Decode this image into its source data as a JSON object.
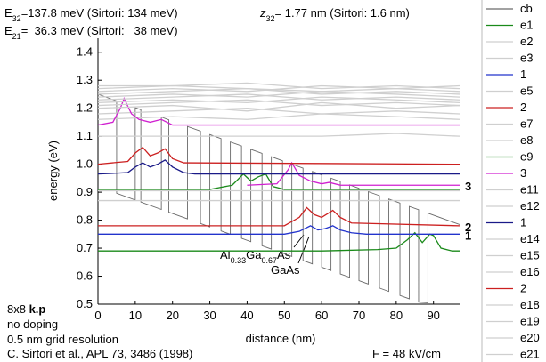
{
  "chart_data": {
    "type": "line",
    "xlabel": "distance (nm)",
    "ylabel": "energy (eV)",
    "xlim": [
      0,
      97
    ],
    "ylim": [
      0.5,
      1.45
    ],
    "xticks": [
      0,
      10,
      20,
      30,
      40,
      50,
      60,
      70,
      80,
      90
    ],
    "yticks": [
      0.5,
      0.6,
      0.7,
      0.8,
      0.9,
      {
        "value": 1,
        "label": "1.0"
      },
      1.1,
      1.2,
      1.3,
      1.4
    ],
    "annotations": [
      {
        "parts": [
          {
            "text": "E"
          },
          {
            "text": "32",
            "sub": true
          },
          {
            "text": "=137.8 meV (Sirtori: 134 meV)"
          }
        ]
      },
      {
        "parts": [
          {
            "text": "z"
          },
          {
            "text": "32",
            "sub": true
          },
          {
            "text": "= 1.77 nm (Sirtori: 1.6 nm)"
          }
        ]
      },
      {
        "parts": [
          {
            "text": "E"
          },
          {
            "text": "21",
            "sub": true
          },
          {
            "text": "=  36.3 meV (Sirtori:   38 meV)"
          }
        ]
      },
      {
        "parts": [
          {
            "text": "Al"
          },
          {
            "text": "0.33",
            "sub": true
          },
          {
            "text": "Ga"
          },
          {
            "text": "0.67",
            "sub": true
          },
          {
            "text": "As"
          }
        ]
      },
      {
        "parts": [
          {
            "text": "GaAs"
          }
        ]
      },
      {
        "parts": [
          {
            "text": "8x8 "
          },
          {
            "text": "k.p",
            "bold": true
          }
        ]
      },
      {
        "parts": [
          {
            "text": "no doping"
          }
        ]
      },
      {
        "parts": [
          {
            "text": "0.5 nm grid resolution"
          }
        ]
      },
      {
        "parts": [
          {
            "text": "C. Sirtori et al., APL 73, 3486 (1998)"
          }
        ]
      },
      {
        "parts": [
          {
            "text": "F = 48 kV/cm"
          }
        ]
      }
    ],
    "series": [
      {
        "name": "cb",
        "color": "#6a6a6a",
        "x": [
          0,
          5,
          5,
          10,
          10,
          11.5,
          11.5,
          17,
          17,
          19,
          19,
          24,
          24,
          27.5,
          27.5,
          30,
          30,
          33,
          33,
          35.5,
          35.5,
          38.5,
          38.5,
          41,
          41,
          44,
          44,
          46.5,
          46.5,
          49.5,
          49.5,
          52,
          52,
          55,
          55,
          57.5,
          57.5,
          60,
          60,
          62.5,
          62.5,
          65,
          65,
          67.5,
          67.5,
          70,
          70,
          72.5,
          72.5,
          75.5,
          75.5,
          78,
          78,
          81,
          81,
          83.5,
          83.5,
          86,
          86,
          88.5,
          88.5,
          97
        ],
        "values": [
          1.25,
          1.226,
          0.896,
          0.872,
          1.202,
          1.1948,
          0.8648,
          0.8384,
          1.1684,
          1.1588,
          0.8288,
          0.8048,
          1.1348,
          1.118,
          0.788,
          0.776,
          1.106,
          1.0916,
          0.7616,
          0.7496,
          1.0796,
          1.0652,
          0.7352,
          0.7232,
          1.0532,
          1.0388,
          0.7088,
          0.6968,
          1.0268,
          1.0124,
          0.6824,
          0.6704,
          1.0004,
          0.986,
          0.656,
          0.644,
          0.974,
          0.962,
          0.632,
          0.62,
          0.95,
          0.938,
          0.608,
          0.596,
          0.926,
          0.914,
          0.584,
          0.572,
          0.902,
          0.8876,
          0.5576,
          0.5456,
          0.8756,
          0.8612,
          0.5312,
          0.5192,
          0.8492,
          0.8372,
          0.5072,
          0.505,
          0.8252,
          0.7844
        ]
      },
      {
        "name": "e1",
        "color": "#1a8a1a",
        "x": [
          0,
          60,
          75,
          80,
          83,
          85,
          87,
          89,
          90,
          92,
          95,
          97
        ],
        "values": [
          0.69,
          0.69,
          0.695,
          0.7,
          0.73,
          0.755,
          0.72,
          0.75,
          0.745,
          0.7,
          0.69,
          0.69
        ]
      },
      {
        "name": "e2",
        "color": "#cfcfcf",
        "x": [
          0,
          20,
          40,
          60,
          80,
          97
        ],
        "values": [
          0.905,
          0.905,
          0.905,
          0.905,
          0.905,
          0.905
        ]
      },
      {
        "name": "e3",
        "color": "#cfcfcf",
        "x": [
          0,
          20,
          40,
          60,
          80,
          97
        ],
        "values": [
          0.87,
          0.87,
          0.87,
          0.87,
          0.87,
          0.87
        ]
      },
      {
        "name": "1",
        "color": "#2233cc",
        "end_label": true,
        "x": [
          0,
          50,
          54,
          57,
          59,
          61,
          63,
          65,
          68,
          72,
          97
        ],
        "values": [
          0.75,
          0.75,
          0.76,
          0.78,
          0.765,
          0.77,
          0.78,
          0.765,
          0.755,
          0.75,
          0.75
        ]
      },
      {
        "name": "e5",
        "color": "#cfcfcf",
        "x": [
          0,
          20,
          40,
          60,
          80,
          97
        ],
        "values": [
          1.1,
          1.1,
          1.1,
          1.1,
          1.11,
          1.1
        ]
      },
      {
        "name": "2",
        "color": "#cc2020",
        "end_label": true,
        "x": [
          0,
          50,
          54,
          56,
          58,
          60,
          63,
          65,
          68,
          97
        ],
        "values": [
          0.78,
          0.78,
          0.81,
          0.845,
          0.82,
          0.81,
          0.835,
          0.81,
          0.79,
          0.78
        ]
      },
      {
        "name": "e7",
        "color": "#cfcfcf",
        "x": [
          0,
          20,
          40,
          60,
          80,
          97
        ],
        "values": [
          1.16,
          1.17,
          1.16,
          1.18,
          1.17,
          1.16
        ]
      },
      {
        "name": "e8",
        "color": "#cfcfcf",
        "x": [
          0,
          20,
          40,
          60,
          80,
          97
        ],
        "values": [
          1.18,
          1.19,
          1.2,
          1.18,
          1.19,
          1.18
        ]
      },
      {
        "name": "e9",
        "color": "#1a8a1a",
        "x": [
          0,
          30,
          36,
          39,
          41,
          43,
          45,
          47,
          50,
          97
        ],
        "values": [
          0.91,
          0.91,
          0.925,
          0.965,
          0.94,
          0.955,
          0.965,
          0.92,
          0.91,
          0.91
        ]
      },
      {
        "name": "3",
        "color": "#d020d0",
        "end_label": true,
        "x": [
          0,
          4,
          6,
          7,
          9,
          11,
          14,
          17,
          20,
          25,
          97,
          null,
          40,
          48,
          51,
          52,
          54,
          57,
          60,
          62,
          65,
          97
        ],
        "values": [
          1.14,
          1.15,
          1.2,
          1.235,
          1.18,
          1.16,
          1.15,
          1.16,
          1.14,
          1.14,
          1.14,
          null,
          0.925,
          0.93,
          0.98,
          1.005,
          0.96,
          0.94,
          0.93,
          0.935,
          0.925,
          0.925
        ]
      },
      {
        "name": "e11",
        "color": "#cfcfcf",
        "x": [
          0,
          20,
          40,
          60,
          80,
          97
        ],
        "values": [
          1.2,
          1.21,
          1.19,
          1.22,
          1.2,
          1.21
        ]
      },
      {
        "name": "e12",
        "color": "#cfcfcf",
        "x": [
          0,
          20,
          40,
          60,
          80,
          97
        ],
        "values": [
          1.21,
          1.22,
          1.23,
          1.21,
          1.22,
          1.21
        ]
      },
      {
        "name": "1",
        "color": "#1a1a88",
        "x": [
          0,
          8,
          10,
          12,
          14,
          16,
          18,
          20,
          23,
          26,
          97
        ],
        "values": [
          0.965,
          0.97,
          0.99,
          1.005,
          0.99,
          1.0,
          1.015,
          0.99,
          0.97,
          0.965,
          0.965
        ]
      },
      {
        "name": "e14",
        "color": "#cfcfcf",
        "x": [
          0,
          20,
          40,
          60,
          80,
          97
        ],
        "values": [
          1.22,
          1.23,
          1.22,
          1.24,
          1.23,
          1.22
        ]
      },
      {
        "name": "e15",
        "color": "#cfcfcf",
        "x": [
          0,
          20,
          40,
          60,
          80,
          97
        ],
        "values": [
          1.23,
          1.24,
          1.25,
          1.23,
          1.24,
          1.23
        ]
      },
      {
        "name": "e16",
        "color": "#cfcfcf",
        "x": [
          0,
          20,
          40,
          60,
          80,
          97
        ],
        "values": [
          1.24,
          1.25,
          1.24,
          1.26,
          1.25,
          1.24
        ]
      },
      {
        "name": "2",
        "color": "#cc2020",
        "x": [
          0,
          8,
          10,
          12,
          14,
          16,
          18,
          20,
          23,
          97
        ],
        "values": [
          1.0,
          1.01,
          1.04,
          1.06,
          1.03,
          1.04,
          1.055,
          1.02,
          1.005,
          1.0
        ]
      },
      {
        "name": "e18",
        "color": "#cfcfcf",
        "x": [
          0,
          20,
          40,
          60,
          80,
          97
        ],
        "values": [
          1.25,
          1.26,
          1.27,
          1.25,
          1.26,
          1.25
        ]
      },
      {
        "name": "e19",
        "color": "#cfcfcf",
        "x": [
          0,
          20,
          40,
          60,
          80,
          97
        ],
        "values": [
          1.26,
          1.27,
          1.26,
          1.28,
          1.27,
          1.26
        ]
      },
      {
        "name": "e20",
        "color": "#cfcfcf",
        "x": [
          0,
          20,
          40,
          60,
          80,
          97
        ],
        "values": [
          1.27,
          1.28,
          1.27,
          1.26,
          1.27,
          1.28
        ]
      },
      {
        "name": "e21",
        "color": "#cfcfcf",
        "x": [
          0,
          20,
          40,
          60,
          80,
          97
        ],
        "values": [
          1.28,
          1.28,
          1.29,
          1.27,
          1.28,
          1.27
        ]
      }
    ]
  }
}
